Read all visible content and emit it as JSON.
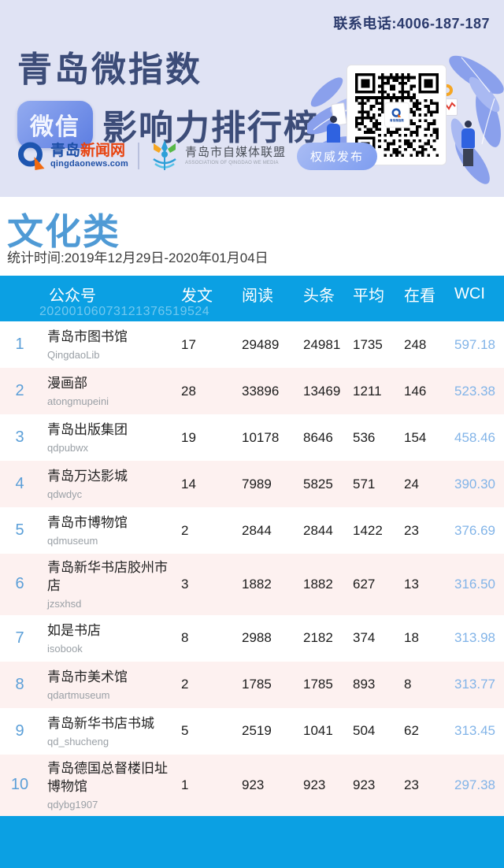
{
  "header": {
    "contact": "联系电话:4006-187-187",
    "title_line1": "青岛微指数",
    "badge_label": "微信",
    "title_line2": "影响力排行榜",
    "logo_news": {
      "part1": "青岛",
      "part2": "新闻网",
      "domain": "qingdaonews.com"
    },
    "logo_assoc": {
      "name": "青岛市自媒体联盟",
      "subtitle": "ASSOCIATION OF QINGDAO WE MEDIA"
    },
    "authority_badge": "权威发布",
    "qr_logo_text": "青岛微指数"
  },
  "section": {
    "category_title": "文化类",
    "stats_period": "统计时间:2019年12月29日-2020年01月04日"
  },
  "table": {
    "columns": [
      "公众号",
      "发文",
      "阅读",
      "头条",
      "平均",
      "在看",
      "WCI"
    ],
    "watermark": "20200106073121376519524",
    "rows": [
      {
        "rank": "1",
        "name": "青岛市图书馆",
        "account": "QingdaoLib",
        "posts": "17",
        "reads": "29489",
        "headline": "24981",
        "average": "1735",
        "in_look": "248",
        "wci": "597.18"
      },
      {
        "rank": "2",
        "name": "漫画部",
        "account": "atongmupeini",
        "posts": "28",
        "reads": "33896",
        "headline": "13469",
        "average": "1211",
        "in_look": "146",
        "wci": "523.38"
      },
      {
        "rank": "3",
        "name": "青岛出版集团",
        "account": "qdpubwx",
        "posts": "19",
        "reads": "10178",
        "headline": "8646",
        "average": "536",
        "in_look": "154",
        "wci": "458.46"
      },
      {
        "rank": "4",
        "name": "青岛万达影城",
        "account": "qdwdyc",
        "posts": "14",
        "reads": "7989",
        "headline": "5825",
        "average": "571",
        "in_look": "24",
        "wci": "390.30"
      },
      {
        "rank": "5",
        "name": "青岛市博物馆",
        "account": "qdmuseum",
        "posts": "2",
        "reads": "2844",
        "headline": "2844",
        "average": "1422",
        "in_look": "23",
        "wci": "376.69"
      },
      {
        "rank": "6",
        "name": "青岛新华书店胶州市店",
        "account": "jzsxhsd",
        "posts": "3",
        "reads": "1882",
        "headline": "1882",
        "average": "627",
        "in_look": "13",
        "wci": "316.50"
      },
      {
        "rank": "7",
        "name": "如是书店",
        "account": "isobook",
        "posts": "8",
        "reads": "2988",
        "headline": "2182",
        "average": "374",
        "in_look": "18",
        "wci": "313.98"
      },
      {
        "rank": "8",
        "name": "青岛市美术馆",
        "account": "qdartmuseum",
        "posts": "2",
        "reads": "1785",
        "headline": "1785",
        "average": "893",
        "in_look": "8",
        "wci": "313.77"
      },
      {
        "rank": "9",
        "name": "青岛新华书店书城",
        "account": "qd_shucheng",
        "posts": "5",
        "reads": "2519",
        "headline": "1041",
        "average": "504",
        "in_look": "62",
        "wci": "313.45"
      },
      {
        "rank": "10",
        "name": "青岛德国总督楼旧址博物馆",
        "account": "qdybg1907",
        "posts": "1",
        "reads": "923",
        "headline": "923",
        "average": "923",
        "in_look": "23",
        "wci": "297.38"
      }
    ]
  },
  "colors": {
    "accent_blue": "#0ba0e3",
    "hero_lavender": "#e0e3f4",
    "title_navy": "#3c4c78",
    "pink_row": "#fdf1f0",
    "rank_blue": "#5b9fd8",
    "wci_blue": "#82b4e8",
    "category_blue": "#4f9ad5",
    "news_red": "#e8420d",
    "news_blue": "#1d4fa6"
  }
}
